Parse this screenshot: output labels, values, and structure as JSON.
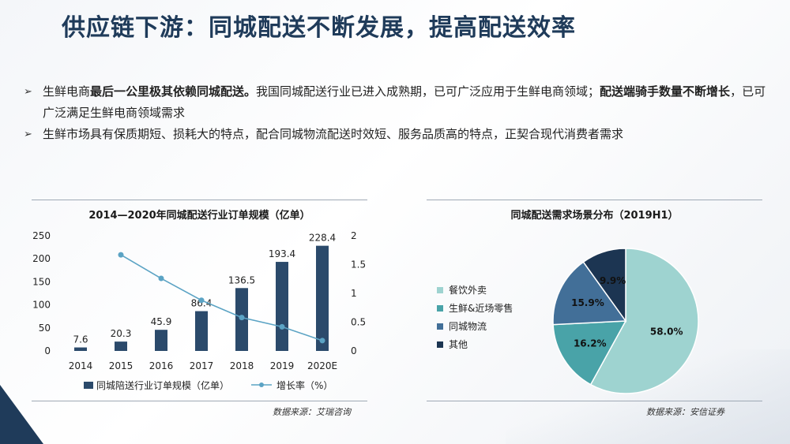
{
  "title": "供应链下游：同城配送不断发展，提高配送效率",
  "bullets": [
    {
      "pre": "生鲜电商",
      "b1": "最后一公里极其依赖同城配送。",
      "mid": "我国同城配送行业已进入成熟期，已可广泛应用于生鲜电商领域；",
      "b2": "配送端骑手数量不断增长",
      "post": "，已可广泛满足生鲜电商领域需求"
    },
    {
      "pre": "生鲜市场具有保质期短、损耗大的特点，配合同城物流配送时效短、服务品质高的特点，正契合现代消费者需求"
    }
  ],
  "colors": {
    "title": "#1f3b5a",
    "bar": "#2b4a6b",
    "line": "#5ba3c4",
    "pie": [
      "#9ed3d0",
      "#49a3a8",
      "#426f98",
      "#1c3552"
    ]
  },
  "chart_data": [
    {
      "type": "bar",
      "title": "2014—2020年同城配送行业订单规模（亿单）",
      "categories": [
        "2014",
        "2015",
        "2016",
        "2017",
        "2018",
        "2019",
        "2020E"
      ],
      "series": [
        {
          "name": "同城陪送行业订单规模（亿单）",
          "type": "bar",
          "axis": "left",
          "values": [
            7.6,
            20.3,
            45.9,
            86.4,
            136.5,
            193.4,
            228.4
          ]
        },
        {
          "name": "增长率（%）",
          "type": "line",
          "axis": "right",
          "values": [
            null,
            1.67,
            1.26,
            0.88,
            0.58,
            0.42,
            0.18
          ]
        }
      ],
      "ylim": [
        0,
        250
      ],
      "yticks": [
        "0",
        "50",
        "100",
        "150",
        "200",
        "250"
      ],
      "y2lim": [
        0,
        2
      ],
      "y2ticks": [
        "0",
        "0.5",
        "1",
        "1.5",
        "2"
      ],
      "legend": "bottom",
      "source": "数据来源：艾瑞咨询"
    },
    {
      "type": "pie",
      "title": "同城配送需求场景分布（2019H1）",
      "labels": [
        "餐饮外卖",
        "生鲜&近场零售",
        "同城物流",
        "其他"
      ],
      "values": [
        58.0,
        16.2,
        15.9,
        9.9
      ],
      "value_labels": [
        "58.0%",
        "16.2%",
        "15.9%",
        "9.9%"
      ],
      "legend": "left",
      "source": "数据来源：安信证券"
    }
  ]
}
